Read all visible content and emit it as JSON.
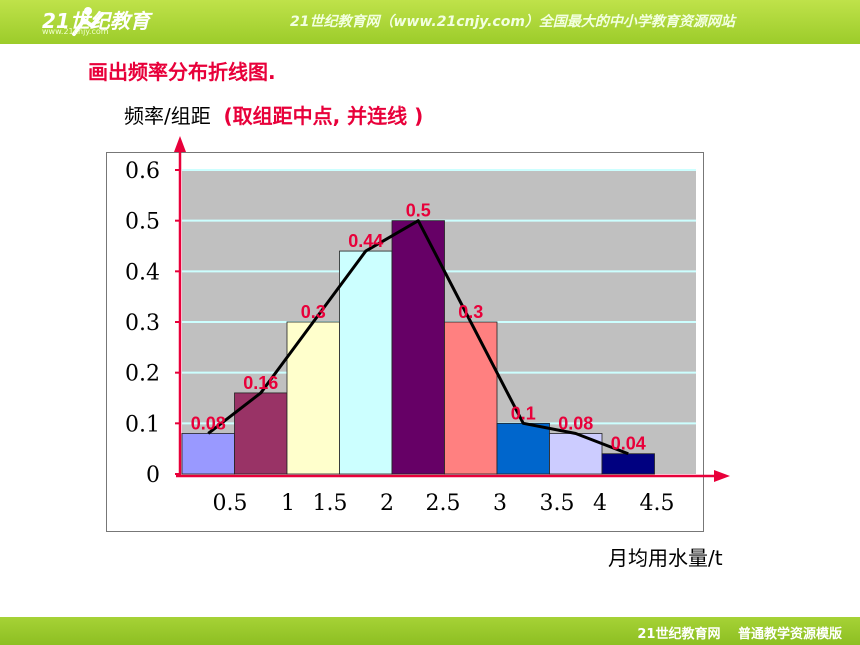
{
  "header": {
    "logo_text": "21世纪教育",
    "logo_url": "www.21cnjy.com",
    "slogan": "21世纪教育网（www.21cnjy.com）全国最大的中小学教育资源网站"
  },
  "footer": {
    "text": "21世纪教育网　 普通教学资源模版"
  },
  "slide": {
    "heading": "画出频率分布折线图.",
    "subtitle_main": "频率/组距",
    "subtitle_note": "(取组距中点, 并连线 )",
    "x_axis_title": "月均用水量/t"
  },
  "chart_data": {
    "type": "bar",
    "ylabel": "频率/组距",
    "xlabel": "月均用水量/t",
    "ylim": [
      0,
      0.6
    ],
    "y_ticks": [
      "0",
      "0.1",
      "0.2",
      "0.3",
      "0.4",
      "0.5",
      "0.6"
    ],
    "x_ticks": [
      "0.5",
      "1",
      "1.5",
      "2",
      "2.5",
      "3",
      "3.5",
      "4",
      "4.5"
    ],
    "bins": [
      [
        0,
        0.5
      ],
      [
        0.5,
        1
      ],
      [
        1,
        1.5
      ],
      [
        1.5,
        2
      ],
      [
        2,
        2.5
      ],
      [
        2.5,
        3
      ],
      [
        3,
        3.5
      ],
      [
        3.5,
        4
      ],
      [
        4,
        4.5
      ]
    ],
    "values": [
      0.08,
      0.16,
      0.3,
      0.44,
      0.5,
      0.3,
      0.1,
      0.08,
      0.04
    ],
    "labels": [
      "0.08",
      "0.16",
      "0.3",
      "0.44",
      "0.5",
      "0.3",
      "0.1",
      "0.08",
      "0.04"
    ],
    "bar_colors": [
      "#9999ff",
      "#993366",
      "#ffffcc",
      "#ccffff",
      "#660066",
      "#ff8080",
      "#0066cc",
      "#ccccff",
      "#000080"
    ],
    "polyline": {
      "x": [
        0.25,
        0.75,
        1.25,
        1.75,
        2.25,
        2.75,
        3.25,
        3.75,
        4.25
      ],
      "y": [
        0.08,
        0.16,
        0.3,
        0.44,
        0.5,
        0.3,
        0.1,
        0.08,
        0.04
      ]
    },
    "grid": true,
    "plot_background": "#c0c0c0",
    "gridline_color": "#ccffff",
    "axis_color": "#e8003a",
    "label_color": "#e8003a"
  }
}
